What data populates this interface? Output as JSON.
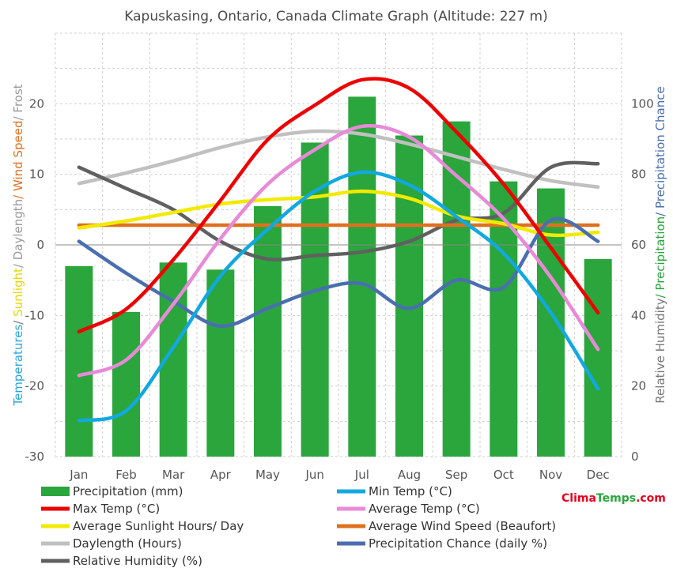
{
  "chart_data": {
    "type": "bar+line",
    "title": "Kapuskasing, Ontario, Canada Climate Graph (Altitude: 227 m)",
    "categories": [
      "Jan",
      "Feb",
      "Mar",
      "Apr",
      "May",
      "Jun",
      "Jul",
      "Aug",
      "Sep",
      "Oct",
      "Nov",
      "Dec"
    ],
    "left_axis": {
      "label_parts": [
        {
          "text": "Temperatures",
          "color": "#2aa6dc"
        },
        {
          "text": "/ ",
          "color": "#777777"
        },
        {
          "text": "Sunlight",
          "color": "#e6d800"
        },
        {
          "text": "/ Daylength",
          "color": "#9a9a9a"
        },
        {
          "text": "/ Wind Speed",
          "color": "#e07020"
        },
        {
          "text": "/ Frost",
          "color": "#9a9a9a"
        }
      ],
      "range": [
        -30,
        30
      ],
      "ticks": [
        "-30",
        "-20",
        "-10",
        "0",
        "10",
        "20"
      ]
    },
    "right_axis": {
      "label_parts": [
        {
          "text": "Relative Humidity",
          "color": "#777777"
        },
        {
          "text": "/ Precipitation",
          "color": "#2aa63c"
        },
        {
          "text": "/ Precipitation Chance",
          "color": "#4a6fb0"
        }
      ],
      "range": [
        0,
        120
      ],
      "ticks": [
        "0",
        "20",
        "40",
        "60",
        "80",
        "100"
      ]
    },
    "bars": {
      "name": "Precipitation (mm)",
      "color": "#2aa63c",
      "axis": "right",
      "values": [
        54,
        41,
        55,
        53,
        71,
        89,
        102,
        91,
        95,
        78,
        76,
        56
      ]
    },
    "series": [
      {
        "name": "Daylength (Hours)",
        "color": "#c0c0c0",
        "axis": "left",
        "values": [
          8.7,
          10.2,
          11.9,
          13.8,
          15.3,
          16.1,
          15.7,
          14.3,
          12.5,
          10.7,
          9.1,
          8.2
        ]
      },
      {
        "name": "Relative Humidity (%)",
        "color": "#606060",
        "axis": "right",
        "values": [
          82,
          76,
          70,
          61,
          56,
          57,
          58,
          61,
          67,
          69,
          82,
          83
        ]
      },
      {
        "name": "Average Wind Speed (Beaufort)",
        "color": "#e07020",
        "axis": "left",
        "values": [
          2.8,
          2.8,
          2.8,
          2.8,
          2.8,
          2.8,
          2.8,
          2.8,
          2.8,
          2.8,
          2.8,
          2.8
        ]
      },
      {
        "name": "Average Sunlight Hours/ Day",
        "color": "#f2ea00",
        "axis": "left",
        "values": [
          2.4,
          3.4,
          4.6,
          5.8,
          6.4,
          6.8,
          7.6,
          6.6,
          4.1,
          3.0,
          1.4,
          1.8
        ]
      },
      {
        "name": "Precipitation Chance (daily %)",
        "color": "#4a6fb0",
        "axis": "right",
        "values": [
          61,
          52,
          44,
          37,
          42,
          47,
          49,
          42,
          50,
          48,
          67,
          61
        ]
      },
      {
        "name": "Min Temp (°C)",
        "color": "#12a8e0",
        "axis": "left",
        "values": [
          -24.9,
          -23.5,
          -14.5,
          -4.4,
          2.2,
          7.6,
          10.3,
          8.5,
          4.0,
          -1.2,
          -9.6,
          -20.4
        ]
      },
      {
        "name": "Average Temp (°C)",
        "color": "#e88ad8",
        "axis": "left",
        "values": [
          -18.5,
          -16.3,
          -8.4,
          0.9,
          8.6,
          13.5,
          16.8,
          15.3,
          9.8,
          3.7,
          -4.6,
          -14.8
        ]
      },
      {
        "name": "Max Temp (°C)",
        "color": "#ee0000",
        "axis": "left",
        "values": [
          -12.3,
          -9.1,
          -2.1,
          6.3,
          14.9,
          19.8,
          23.4,
          22.2,
          16.0,
          8.6,
          -0.4,
          -9.6
        ]
      }
    ],
    "legend": [
      {
        "label": "Precipitation (mm)",
        "color": "#2aa63c",
        "kind": "bar"
      },
      {
        "label": "Min Temp (°C)",
        "color": "#12a8e0",
        "kind": "line"
      },
      {
        "label": "Max Temp (°C)",
        "color": "#ee0000",
        "kind": "line"
      },
      {
        "label": "Average Temp (°C)",
        "color": "#e88ad8",
        "kind": "line"
      },
      {
        "label": "Average Sunlight Hours/ Day",
        "color": "#f2ea00",
        "kind": "line"
      },
      {
        "label": "Average Wind Speed (Beaufort)",
        "color": "#e07020",
        "kind": "line"
      },
      {
        "label": "Daylength (Hours)",
        "color": "#c0c0c0",
        "kind": "line"
      },
      {
        "label": "Precipitation Chance (daily %)",
        "color": "#4a6fb0",
        "kind": "line"
      },
      {
        "label": "Relative Humidity (%)",
        "color": "#606060",
        "kind": "line"
      }
    ],
    "legend_placement": "bottom",
    "grid": true
  },
  "branding": {
    "part1": "Clima",
    "part2": "Temps",
    "part3": ".com"
  }
}
